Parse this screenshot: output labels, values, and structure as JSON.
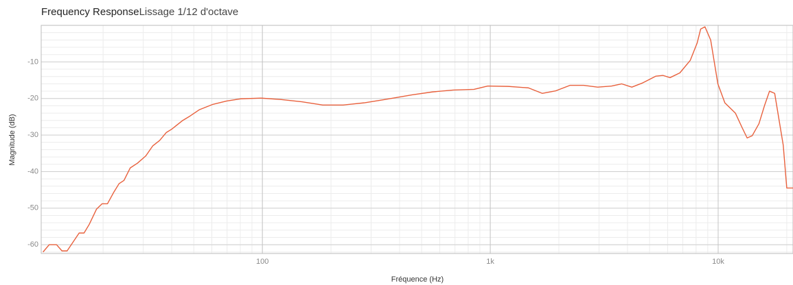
{
  "chart_data": {
    "type": "line",
    "title": "Frequency Response",
    "subtitle": "Lissage 1/12 d'octave",
    "x_label": "Fréquence (Hz)",
    "y_label": "Magnitude (dB)",
    "x": [
      10.9,
      11.6,
      12.5,
      13.2,
      13.9,
      15.7,
      16.5,
      17.4,
      18.7,
      19.8,
      20.9,
      22.3,
      23.5,
      24.7,
      26.3,
      28.3,
      30.8,
      33.0,
      35.4,
      37.9,
      40.0,
      44.5,
      47.6,
      52.8,
      60.7,
      69.7,
      80.1,
      98.6,
      121,
      149,
      184,
      226,
      279,
      344,
      454,
      559,
      688,
      848,
      975,
      1200,
      1470,
      1690,
      1940,
      2240,
      2570,
      2960,
      3410,
      3770,
      4180,
      4640,
      5330,
      5730,
      6150,
      6790,
      7540,
      8090,
      8380,
      8750,
      9270,
      9970,
      10700,
      11900,
      12700,
      13400,
      14100,
      15100,
      16000,
      16800,
      17700,
      19300,
      20000,
      21300
    ],
    "values": [
      -62,
      -60,
      -60,
      -61.7,
      -61.7,
      -56.8,
      -56.8,
      -54.4,
      -50.3,
      -48.8,
      -48.8,
      -45.6,
      -43.3,
      -42.4,
      -39,
      -37.7,
      -35.7,
      -33,
      -31.5,
      -29.3,
      -28.4,
      -26.1,
      -25,
      -23.1,
      -21.6,
      -20.7,
      -20.1,
      -19.9,
      -20.3,
      -20.9,
      -21.8,
      -21.8,
      -21.2,
      -20.3,
      -19,
      -18.2,
      -17.7,
      -17.5,
      -16.6,
      -16.7,
      -17.1,
      -18.6,
      -17.9,
      -16.4,
      -16.4,
      -16.9,
      -16.6,
      -16,
      -16.9,
      -15.8,
      -13.9,
      -13.7,
      -14.3,
      -13,
      -9.6,
      -4.8,
      -1,
      -0.4,
      -4,
      -16,
      -21.2,
      -24,
      -27.8,
      -30.8,
      -30.2,
      -26.9,
      -21.8,
      -18,
      -18.6,
      -32.8,
      -44.5,
      -44.5
    ],
    "color": "#e8603c",
    "x_log": true,
    "xlim": [
      10.7,
      21300
    ],
    "ylim": [
      -62.4,
      0
    ],
    "xticks": [
      100,
      {
        "value": 1000,
        "label": "1k"
      },
      {
        "value": 10000,
        "label": "10k"
      }
    ],
    "yticks": [
      -60,
      -50,
      -40,
      -30,
      -20,
      -10
    ],
    "grid": true,
    "minor_grid": true
  }
}
